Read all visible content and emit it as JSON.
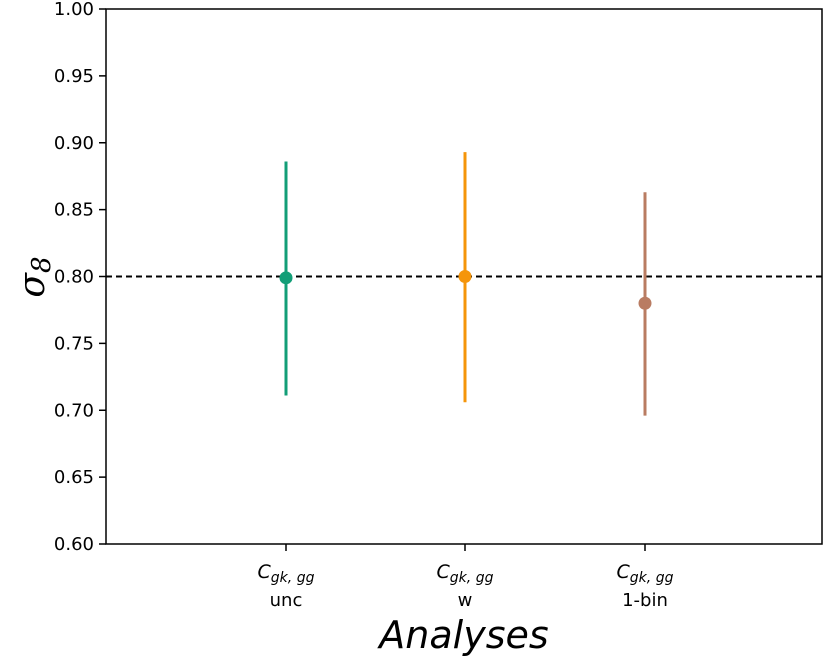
{
  "chart_data": {
    "type": "scatter",
    "title": "",
    "xlabel": "Analyses",
    "ylabel": "σ8",
    "ylabel_symbol": "σ",
    "ylabel_subscript": "8",
    "ylim": [
      0.6,
      1.0
    ],
    "yticks": [
      0.6,
      0.65,
      0.7,
      0.75,
      0.8,
      0.85,
      0.9,
      0.95,
      1.0
    ],
    "ytick_labels": [
      "0.60",
      "0.65",
      "0.70",
      "0.75",
      "0.80",
      "0.85",
      "0.90",
      "0.95",
      "1.00"
    ],
    "reference_line": {
      "y": 0.8,
      "style": "dashed",
      "color": "#000000"
    },
    "grid": false,
    "categories": [
      {
        "main": "C",
        "subscript": "gk, gg",
        "sub": "unc"
      },
      {
        "main": "C",
        "subscript": "gk, gg",
        "sub": "w"
      },
      {
        "main": "C",
        "subscript": "gk, gg",
        "sub": "1-bin"
      }
    ],
    "points": [
      {
        "category_index": 0,
        "y": 0.799,
        "err_low": 0.711,
        "err_high": 0.886,
        "color": "#129e77"
      },
      {
        "category_index": 1,
        "y": 0.8,
        "err_low": 0.706,
        "err_high": 0.893,
        "color": "#f5950a"
      },
      {
        "category_index": 2,
        "y": 0.78,
        "err_low": 0.696,
        "err_high": 0.863,
        "color": "#b97c62"
      }
    ]
  }
}
